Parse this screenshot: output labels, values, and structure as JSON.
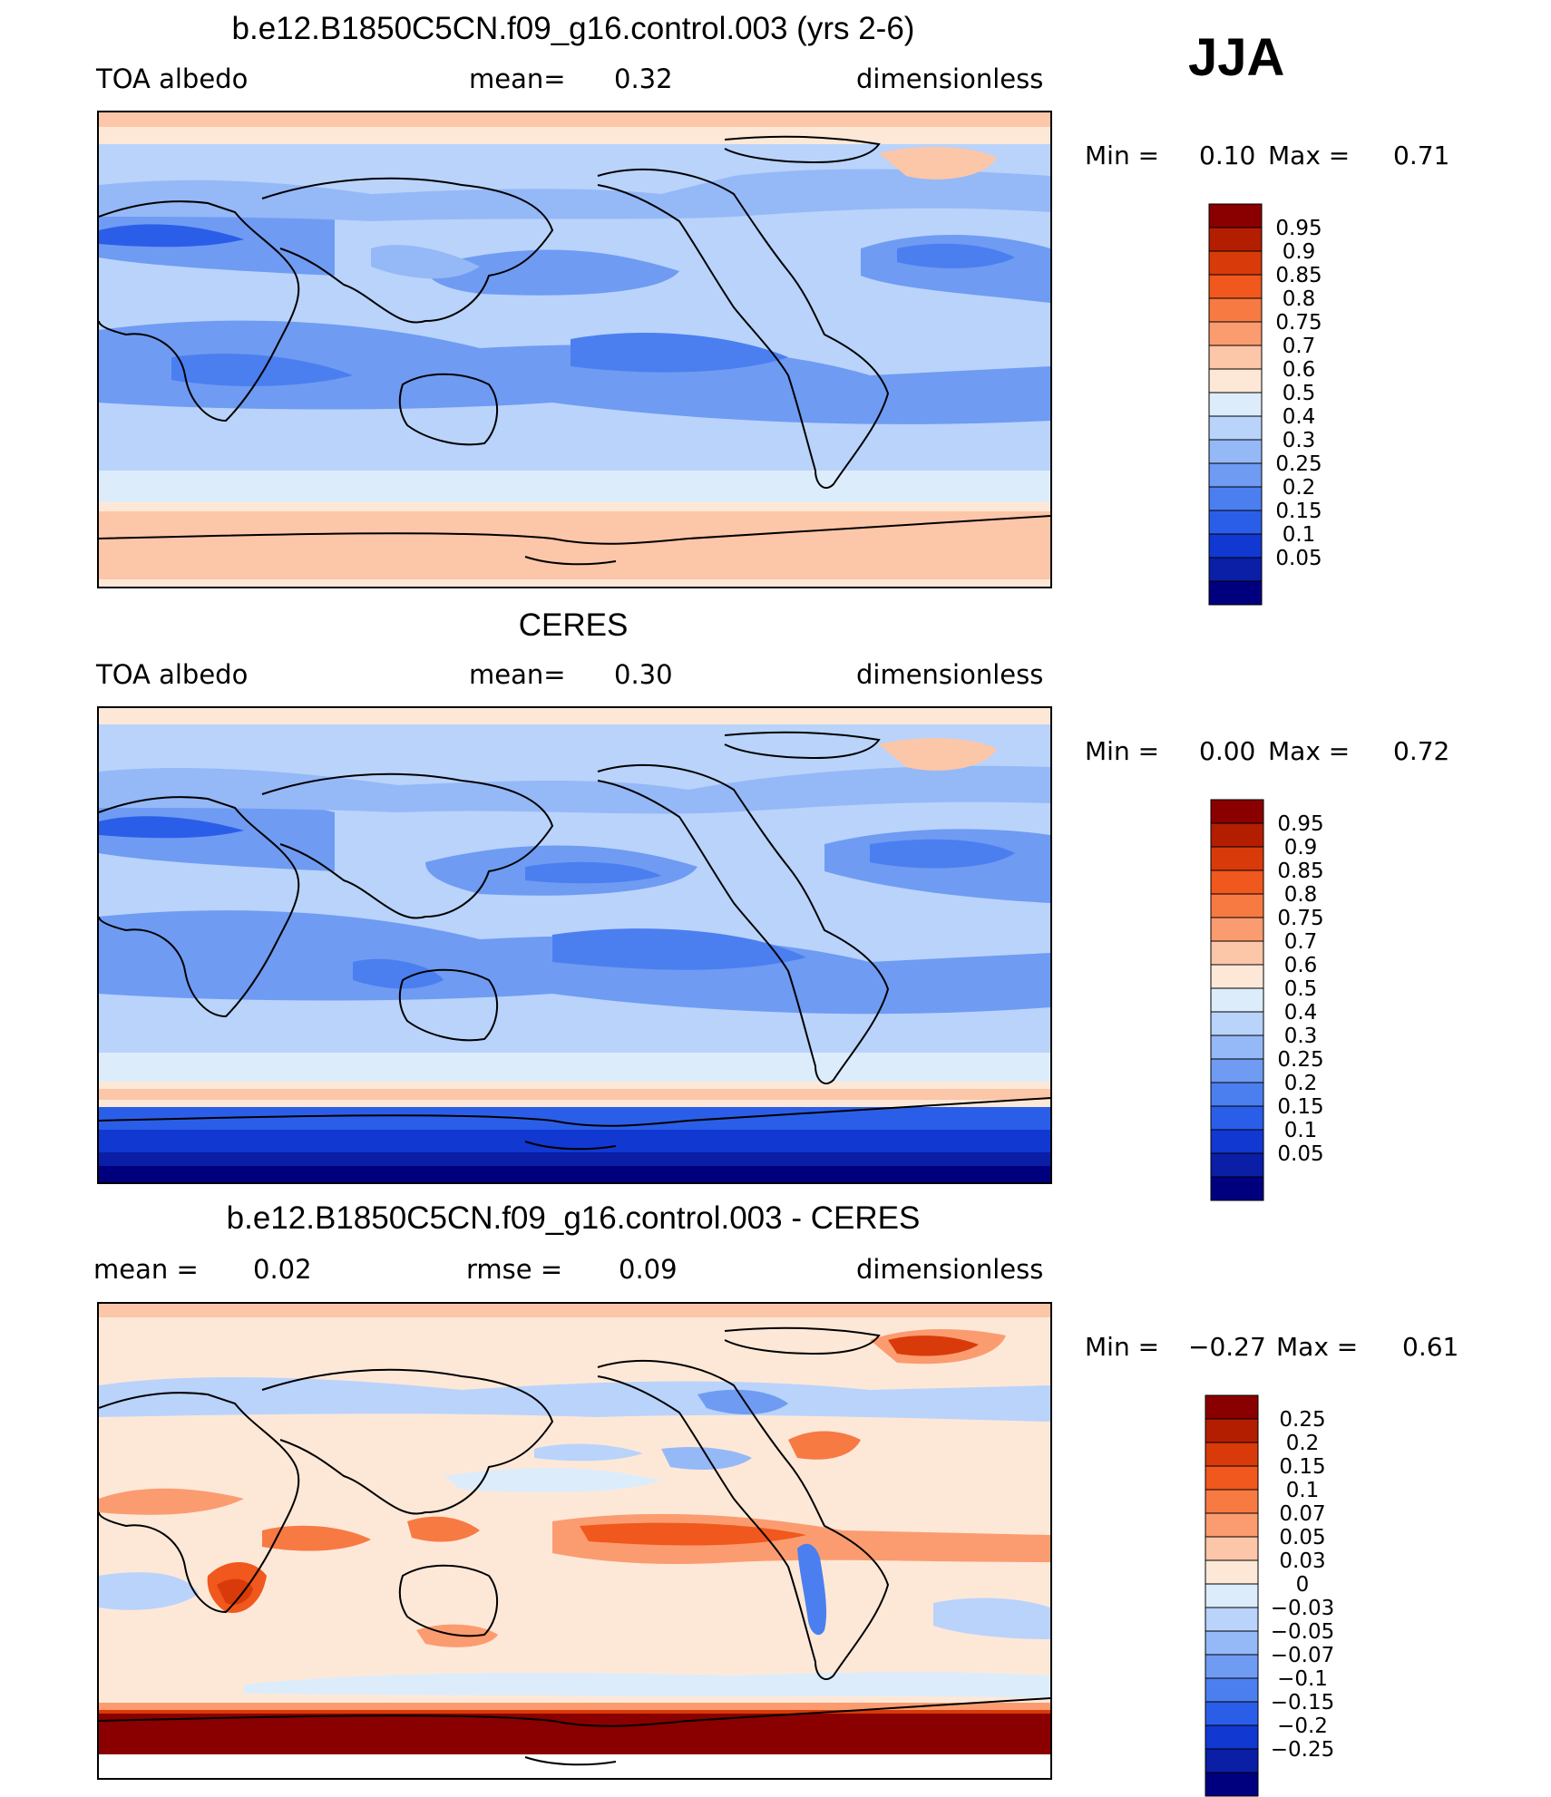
{
  "season": "JJA",
  "panels": [
    {
      "title": "b.e12.B1850C5CN.f09_g16.control.003 (yrs 2-6)",
      "left": "TOA albedo",
      "center_label": "mean=",
      "center_value": "0.32",
      "right": "dimensionless",
      "min_label": "Min =",
      "min_value": "0.10",
      "max_label": "Max =",
      "max_value": "0.71"
    },
    {
      "title": "CERES",
      "left": "TOA albedo",
      "center_label": "mean=",
      "center_value": "0.30",
      "right": "dimensionless",
      "min_label": "Min =",
      "min_value": "0.00",
      "max_label": "Max =",
      "max_value": "0.72"
    },
    {
      "title": "b.e12.B1850C5CN.f09_g16.control.003 - CERES",
      "left_label": "mean =",
      "left_value": "0.02",
      "center_label": "rmse =",
      "center_value": "0.09",
      "right": "dimensionless",
      "min_label": "Min =",
      "min_value": "−0.27",
      "max_label": "Max =",
      "max_value": "0.61"
    }
  ],
  "colorbars": {
    "albedo": {
      "labels": [
        "0.95",
        "0.9",
        "0.85",
        "0.8",
        "0.75",
        "0.7",
        "0.6",
        "0.5",
        "0.4",
        "0.3",
        "0.25",
        "0.2",
        "0.15",
        "0.1",
        "0.05"
      ],
      "colors": [
        "#8a0000",
        "#b41e00",
        "#d93a0a",
        "#f0581e",
        "#f77a43",
        "#fb9c70",
        "#fcc6a8",
        "#fde8d8",
        "#ddecfb",
        "#b9d3fb",
        "#95b8f7",
        "#6f9bf2",
        "#4b7ff0",
        "#2b5ee8",
        "#1238d2",
        "#0a1ea6",
        "#00007f"
      ]
    },
    "diff": {
      "labels": [
        "0.25",
        "0.2",
        "0.15",
        "0.1",
        "0.07",
        "0.05",
        "0.03",
        "0",
        "−0.03",
        "−0.05",
        "−0.07",
        "−0.1",
        "−0.15",
        "−0.2",
        "−0.25"
      ],
      "colors": [
        "#8a0000",
        "#b41e00",
        "#d93a0a",
        "#f0581e",
        "#f77a43",
        "#fb9c70",
        "#fcc6a8",
        "#fde8d8",
        "#ddecfb",
        "#b9d3fb",
        "#95b8f7",
        "#6f9bf2",
        "#4b7ff0",
        "#2b5ee8",
        "#1238d2",
        "#0a1ea6",
        "#00007f"
      ]
    }
  }
}
